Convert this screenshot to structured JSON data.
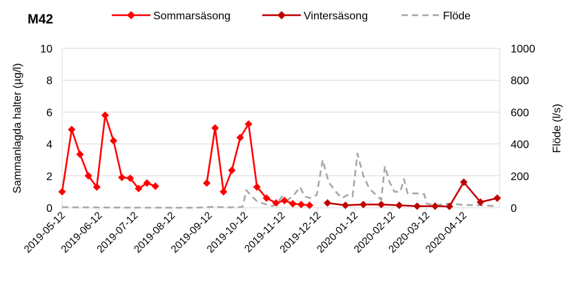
{
  "chart_data": {
    "type": "line",
    "title": "M42",
    "ylabel": "Sammanlagda halter (µg/l)",
    "y2label": "Flöde (l/s)",
    "ylim": [
      0,
      10
    ],
    "y2lim": [
      0,
      1000
    ],
    "yticks": [
      "0",
      "2",
      "4",
      "6",
      "8",
      "10"
    ],
    "y2ticks": [
      "0",
      "200",
      "400",
      "600",
      "800",
      "1000"
    ],
    "xlim": [
      "2019-05-12",
      "2020-05-12"
    ],
    "xticks": [
      "2019-05-12",
      "2019-06-12",
      "2019-07-12",
      "2019-08-12",
      "2019-09-12",
      "2019-10-12",
      "2019-11-12",
      "2019-12-12",
      "2020-01-12",
      "2020-02-12",
      "2020-03-12",
      "2020-04-12"
    ],
    "grid": "horizontal",
    "legend_position": "top",
    "series": [
      {
        "name": "Sommarsäsong",
        "axis": "left",
        "color": "#ff0000",
        "marker": "diamond",
        "segments": [
          [
            [
              "2019-05-12",
              1.0
            ],
            [
              "2019-05-20",
              4.9
            ],
            [
              "2019-05-27",
              3.35
            ],
            [
              "2019-06-03",
              2.0
            ],
            [
              "2019-06-10",
              1.3
            ],
            [
              "2019-06-17",
              5.8
            ],
            [
              "2019-06-24",
              4.2
            ],
            [
              "2019-07-01",
              1.9
            ],
            [
              "2019-07-08",
              1.85
            ],
            [
              "2019-07-15",
              1.2
            ],
            [
              "2019-07-22",
              1.55
            ],
            [
              "2019-07-29",
              1.35
            ]
          ],
          [
            [
              "2019-09-10",
              1.55
            ],
            [
              "2019-09-17",
              5.0
            ],
            [
              "2019-09-24",
              1.0
            ],
            [
              "2019-10-01",
              2.35
            ],
            [
              "2019-10-08",
              4.4
            ],
            [
              "2019-10-15",
              5.25
            ],
            [
              "2019-10-22",
              1.3
            ],
            [
              "2019-10-30",
              0.6
            ],
            [
              "2019-11-07",
              0.3
            ],
            [
              "2019-11-14",
              0.45
            ],
            [
              "2019-11-21",
              0.25
            ],
            [
              "2019-11-28",
              0.2
            ],
            [
              "2019-12-05",
              0.15
            ]
          ]
        ]
      },
      {
        "name": "Vintersäsong",
        "axis": "left",
        "color": "#c00000",
        "marker": "diamond",
        "segments": [
          [
            [
              "2019-12-20",
              0.3
            ],
            [
              "2020-01-04",
              0.15
            ],
            [
              "2020-01-19",
              0.2
            ],
            [
              "2020-02-03",
              0.2
            ],
            [
              "2020-02-18",
              0.15
            ],
            [
              "2020-03-04",
              0.1
            ],
            [
              "2020-03-19",
              0.1
            ],
            [
              "2020-03-31",
              0.08
            ],
            [
              "2020-04-12",
              1.6
            ],
            [
              "2020-04-26",
              0.35
            ],
            [
              "2020-05-10",
              0.6
            ]
          ]
        ]
      },
      {
        "name": "Flöde",
        "axis": "right",
        "color": "#a6a6a6",
        "dashed": true,
        "segments": [
          [
            [
              "2019-05-12",
              3
            ],
            [
              "2019-06-01",
              2
            ],
            [
              "2019-07-01",
              1
            ],
            [
              "2019-08-01",
              0
            ],
            [
              "2019-09-01",
              0
            ],
            [
              "2019-09-15",
              5
            ],
            [
              "2019-10-01",
              2
            ],
            [
              "2019-10-10",
              5
            ],
            [
              "2019-10-13",
              110
            ],
            [
              "2019-10-18",
              70
            ],
            [
              "2019-10-22",
              40
            ],
            [
              "2019-10-28",
              25
            ],
            [
              "2019-11-04",
              10
            ],
            [
              "2019-11-08",
              30
            ],
            [
              "2019-11-12",
              70
            ],
            [
              "2019-11-16",
              45
            ],
            [
              "2019-11-22",
              80
            ],
            [
              "2019-11-27",
              130
            ],
            [
              "2019-12-01",
              70
            ],
            [
              "2019-12-06",
              60
            ],
            [
              "2019-12-11",
              80
            ],
            [
              "2019-12-16",
              300
            ],
            [
              "2019-12-21",
              160
            ],
            [
              "2019-12-27",
              100
            ],
            [
              "2020-01-01",
              60
            ],
            [
              "2020-01-06",
              80
            ],
            [
              "2020-01-10",
              70
            ],
            [
              "2020-01-14",
              340
            ],
            [
              "2020-01-19",
              200
            ],
            [
              "2020-01-24",
              120
            ],
            [
              "2020-01-29",
              85
            ],
            [
              "2020-02-03",
              50
            ],
            [
              "2020-02-06",
              260
            ],
            [
              "2020-02-10",
              160
            ],
            [
              "2020-02-14",
              100
            ],
            [
              "2020-02-19",
              100
            ],
            [
              "2020-02-22",
              180
            ],
            [
              "2020-02-25",
              90
            ],
            [
              "2020-03-04",
              90
            ],
            [
              "2020-03-10",
              85
            ],
            [
              "2020-03-12",
              25
            ],
            [
              "2020-03-20",
              15
            ],
            [
              "2020-03-28",
              25
            ],
            [
              "2020-04-02",
              25
            ],
            [
              "2020-04-10",
              18
            ],
            [
              "2020-04-25",
              15
            ],
            [
              "2020-05-10",
              10
            ]
          ]
        ]
      }
    ]
  }
}
